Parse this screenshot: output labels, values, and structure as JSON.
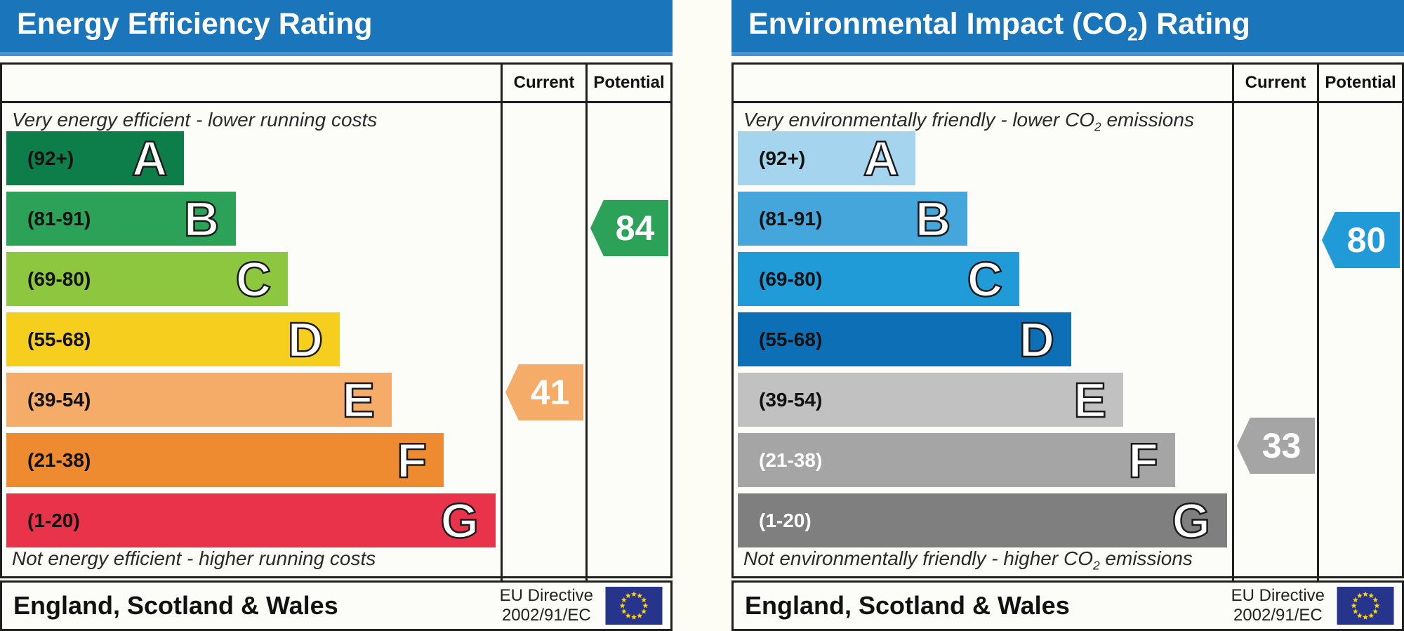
{
  "eu_flag": {
    "field_color": "#27348b",
    "star_color": "#f7d117"
  },
  "panels": [
    {
      "title": {
        "pre": "Energy Efficiency Rating",
        "sub": "",
        "post": ""
      },
      "header_color": "#1b75ba",
      "header_strip_color": "#4b93cc",
      "columns": {
        "current": "Current",
        "potential": "Potential"
      },
      "captions": {
        "top": {
          "pre": "Very energy efficient - lower running costs",
          "sub": "",
          "post": ""
        },
        "bottom": {
          "pre": "Not energy efficient - higher running costs",
          "sub": "",
          "post": ""
        }
      },
      "bands": [
        {
          "letter": "A",
          "range": "(92+)",
          "color": "#0d7e4a",
          "width_pct": 36.0,
          "label_color": "#111111"
        },
        {
          "letter": "B",
          "range": "(81-91)",
          "color": "#2ba258",
          "width_pct": 46.5,
          "label_color": "#111111"
        },
        {
          "letter": "C",
          "range": "(69-80)",
          "color": "#8dc63f",
          "width_pct": 57.0,
          "label_color": "#111111"
        },
        {
          "letter": "D",
          "range": "(55-68)",
          "color": "#f6ce1d",
          "width_pct": 67.5,
          "label_color": "#111111"
        },
        {
          "letter": "E",
          "range": "(39-54)",
          "color": "#f6ac69",
          "width_pct": 78.0,
          "label_color": "#111111"
        },
        {
          "letter": "F",
          "range": "(21-38)",
          "color": "#ee8b30",
          "width_pct": 88.5,
          "label_color": "#111111"
        },
        {
          "letter": "G",
          "range": "(1-20)",
          "color": "#e9334a",
          "width_pct": 99.0,
          "label_color": "#111111"
        }
      ],
      "current": {
        "value": "41",
        "color": "#f6ac69",
        "band": "E"
      },
      "potential": {
        "value": "84",
        "color": "#2ba258",
        "band": "B"
      },
      "footer": {
        "region": "England, Scotland & Wales",
        "directive_line1": "EU Directive",
        "directive_line2": "2002/91/EC"
      }
    },
    {
      "title": {
        "pre": "Environmental Impact (CO",
        "sub": "2",
        "post": ") Rating"
      },
      "header_color": "#1b75ba",
      "header_strip_color": "#4b93cc",
      "columns": {
        "current": "Current",
        "potential": "Potential"
      },
      "captions": {
        "top": {
          "pre": "Very environmentally friendly - lower CO",
          "sub": "2",
          "post": " emissions"
        },
        "bottom": {
          "pre": "Not environmentally friendly - higher CO",
          "sub": "2",
          "post": " emissions"
        }
      },
      "bands": [
        {
          "letter": "A",
          "range": "(92+)",
          "color": "#a4d4ee",
          "width_pct": 36.0,
          "label_color": "#111111"
        },
        {
          "letter": "B",
          "range": "(81-91)",
          "color": "#45a6db",
          "width_pct": 46.5,
          "label_color": "#111111"
        },
        {
          "letter": "C",
          "range": "(69-80)",
          "color": "#219bd8",
          "width_pct": 57.0,
          "label_color": "#111111"
        },
        {
          "letter": "D",
          "range": "(55-68)",
          "color": "#0d6fb6",
          "width_pct": 67.5,
          "label_color": "#111111"
        },
        {
          "letter": "E",
          "range": "(39-54)",
          "color": "#c1c1c1",
          "width_pct": 78.0,
          "label_color": "#111111"
        },
        {
          "letter": "F",
          "range": "(21-38)",
          "color": "#a5a5a5",
          "width_pct": 88.5,
          "label_color": "#ffffff"
        },
        {
          "letter": "G",
          "range": "(1-20)",
          "color": "#7f7f7f",
          "width_pct": 99.0,
          "label_color": "#ffffff"
        }
      ],
      "current": {
        "value": "33",
        "color": "#a5a5a5",
        "band": "F"
      },
      "potential": {
        "value": "80",
        "color": "#219bd8",
        "band": "C"
      },
      "footer": {
        "region": "England, Scotland & Wales",
        "directive_line1": "EU Directive",
        "directive_line2": "2002/91/EC"
      }
    }
  ],
  "chart_data": [
    {
      "type": "bar",
      "title": "Energy Efficiency Rating",
      "categories": [
        "A",
        "B",
        "C",
        "D",
        "E",
        "F",
        "G"
      ],
      "band_ranges": [
        "92+",
        "81-91",
        "69-80",
        "55-68",
        "39-54",
        "21-38",
        "1-20"
      ],
      "band_widths_pct": [
        36.0,
        46.5,
        57.0,
        67.5,
        78.0,
        88.5,
        99.0
      ],
      "series": [
        {
          "name": "Current",
          "value": 41,
          "band": "E"
        },
        {
          "name": "Potential",
          "value": 84,
          "band": "B"
        }
      ],
      "top_caption": "Very energy efficient - lower running costs",
      "bottom_caption": "Not energy efficient - higher running costs",
      "footer": "England, Scotland & Wales",
      "directive": "EU Directive 2002/91/EC"
    },
    {
      "type": "bar",
      "title": "Environmental Impact (CO2) Rating",
      "categories": [
        "A",
        "B",
        "C",
        "D",
        "E",
        "F",
        "G"
      ],
      "band_ranges": [
        "92+",
        "81-91",
        "69-80",
        "55-68",
        "39-54",
        "21-38",
        "1-20"
      ],
      "band_widths_pct": [
        36.0,
        46.5,
        57.0,
        67.5,
        78.0,
        88.5,
        99.0
      ],
      "series": [
        {
          "name": "Current",
          "value": 33,
          "band": "F"
        },
        {
          "name": "Potential",
          "value": 80,
          "band": "C"
        }
      ],
      "top_caption": "Very environmentally friendly - lower CO2 emissions",
      "bottom_caption": "Not environmentally friendly - higher CO2 emissions",
      "footer": "England, Scotland & Wales",
      "directive": "EU Directive 2002/91/EC"
    }
  ]
}
